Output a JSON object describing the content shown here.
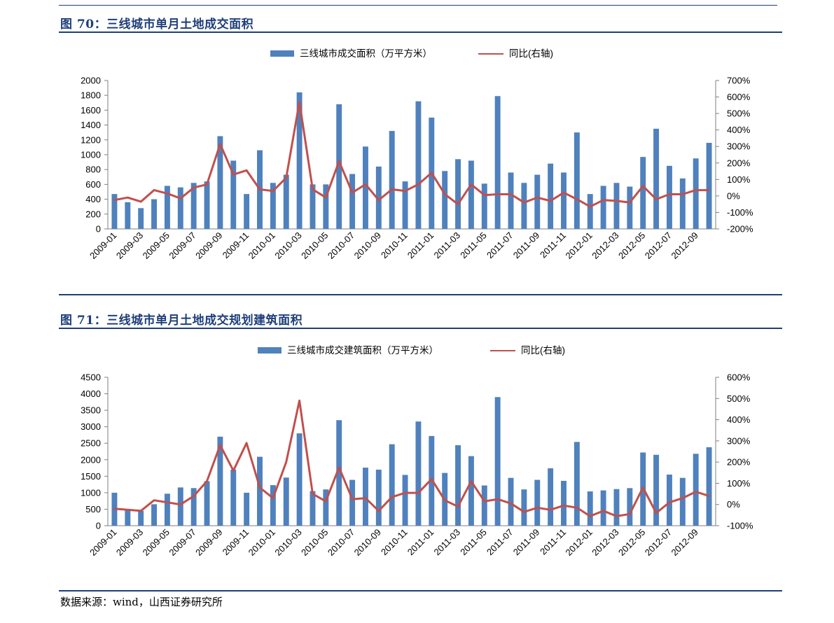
{
  "figures": [
    {
      "title": "图 70：三线城市单月土地成交面积"
    },
    {
      "title": "图 71：三线城市单月土地成交规划建筑面积"
    }
  ],
  "source": "数据来源：wind，山西证券研究所",
  "colors": {
    "bar": "#4f81bd",
    "line": "#c0504d",
    "title": "#1f3f7a"
  },
  "chart_data": [
    {
      "type": "bar",
      "title": "",
      "categories": [
        "2009-01",
        "2009-02",
        "2009-03",
        "2009-04",
        "2009-05",
        "2009-06",
        "2009-07",
        "2009-08",
        "2009-09",
        "2009-10",
        "2009-11",
        "2009-12",
        "2010-01",
        "2010-02",
        "2010-03",
        "2010-04",
        "2010-05",
        "2010-06",
        "2010-07",
        "2010-08",
        "2010-09",
        "2010-10",
        "2010-11",
        "2010-12",
        "2011-01",
        "2011-02",
        "2011-03",
        "2011-04",
        "2011-05",
        "2011-06",
        "2011-07",
        "2011-08",
        "2011-09",
        "2011-10",
        "2011-11",
        "2011-12",
        "2012-01",
        "2012-02",
        "2012-03",
        "2012-04",
        "2012-05",
        "2012-06",
        "2012-07",
        "2012-08",
        "2012-09",
        "2012-10"
      ],
      "tick_labels": [
        "2009-01",
        "2009-03",
        "2009-05",
        "2009-07",
        "2009-09",
        "2009-11",
        "2010-01",
        "2010-03",
        "2010-05",
        "2010-07",
        "2010-09",
        "2010-11",
        "2011-01",
        "2011-03",
        "2011-05",
        "2011-07",
        "2011-09",
        "2011-11",
        "2012-01",
        "2012-03",
        "2012-05",
        "2012-07",
        "2012-09"
      ],
      "series": [
        {
          "name": "三线城市成交面积（万平方米）",
          "axis": "left",
          "kind": "bar",
          "values": [
            470,
            360,
            280,
            400,
            580,
            560,
            620,
            640,
            1250,
            920,
            470,
            1060,
            620,
            730,
            1840,
            600,
            600,
            1680,
            740,
            1110,
            840,
            1320,
            640,
            1720,
            1500,
            780,
            940,
            920,
            610,
            1790,
            760,
            620,
            730,
            880,
            760,
            1300,
            470,
            580,
            620,
            570,
            970,
            1350,
            850,
            680,
            950,
            1160
          ]
        },
        {
          "name": "同比(右轴)",
          "axis": "right",
          "kind": "line",
          "values": [
            -25,
            -10,
            -35,
            35,
            15,
            -15,
            50,
            70,
            315,
            130,
            155,
            40,
            30,
            110,
            570,
            40,
            -10,
            210,
            20,
            70,
            -25,
            40,
            30,
            70,
            140,
            10,
            -50,
            70,
            5,
            10,
            10,
            -40,
            -10,
            -30,
            20,
            -20,
            -65,
            -25,
            -30,
            -40,
            60,
            -20,
            10,
            10,
            35,
            35
          ]
        }
      ],
      "ylim": [
        0,
        2000
      ],
      "y_ticks": [
        "0",
        "200",
        "400",
        "600",
        "800",
        "1000",
        "1200",
        "1400",
        "1600",
        "1800",
        "2000"
      ],
      "y2lim": [
        -200,
        700
      ],
      "y2_ticks": [
        "-200%",
        "-100%",
        "0%",
        "100%",
        "200%",
        "300%",
        "400%",
        "500%",
        "600%",
        "700%"
      ],
      "legend": "top-center"
    },
    {
      "type": "bar",
      "title": "",
      "categories": [
        "2009-01",
        "2009-02",
        "2009-03",
        "2009-04",
        "2009-05",
        "2009-06",
        "2009-07",
        "2009-08",
        "2009-09",
        "2009-10",
        "2009-11",
        "2009-12",
        "2010-01",
        "2010-02",
        "2010-03",
        "2010-04",
        "2010-05",
        "2010-06",
        "2010-07",
        "2010-08",
        "2010-09",
        "2010-10",
        "2010-11",
        "2010-12",
        "2011-01",
        "2011-02",
        "2011-03",
        "2011-04",
        "2011-05",
        "2011-06",
        "2011-07",
        "2011-08",
        "2011-09",
        "2011-10",
        "2011-11",
        "2011-12",
        "2012-01",
        "2012-02",
        "2012-03",
        "2012-04",
        "2012-05",
        "2012-06",
        "2012-07",
        "2012-08",
        "2012-09",
        "2012-10"
      ],
      "tick_labels": [
        "2009-01",
        "2009-03",
        "2009-05",
        "2009-07",
        "2009-09",
        "2009-11",
        "2010-01",
        "2010-03",
        "2010-05",
        "2010-07",
        "2010-09",
        "2010-11",
        "2011-01",
        "2011-03",
        "2011-05",
        "2011-07",
        "2011-09",
        "2011-11",
        "2012-01",
        "2012-03",
        "2012-05",
        "2012-07",
        "2012-09"
      ],
      "series": [
        {
          "name": "三线城市成交建筑面积（万平方米）",
          "axis": "left",
          "kind": "bar",
          "values": [
            1000,
            480,
            450,
            650,
            970,
            1160,
            1140,
            1350,
            2700,
            1700,
            1000,
            2090,
            1230,
            1460,
            2800,
            1050,
            1100,
            3200,
            1390,
            1760,
            1700,
            2470,
            1540,
            3160,
            2720,
            1600,
            2440,
            2110,
            1220,
            3900,
            1450,
            1100,
            1390,
            1740,
            1360,
            2540,
            1040,
            1070,
            1110,
            1140,
            2220,
            2150,
            1550,
            1450,
            2180,
            2380
          ]
        },
        {
          "name": "同比(右轴)",
          "axis": "right",
          "kind": "line",
          "values": [
            -20,
            -25,
            -30,
            20,
            10,
            0,
            40,
            110,
            280,
            160,
            290,
            80,
            30,
            200,
            490,
            50,
            15,
            175,
            25,
            30,
            -30,
            35,
            55,
            55,
            120,
            20,
            -10,
            110,
            15,
            25,
            5,
            -35,
            -15,
            -25,
            -5,
            -15,
            -55,
            -30,
            -55,
            -45,
            80,
            -40,
            10,
            30,
            60,
            40
          ]
        }
      ],
      "ylim": [
        0,
        4500
      ],
      "y_ticks": [
        "0",
        "500",
        "1000",
        "1500",
        "2000",
        "2500",
        "3000",
        "3500",
        "4000",
        "4500"
      ],
      "y2lim": [
        -100,
        600
      ],
      "y2_ticks": [
        "-100%",
        "0%",
        "100%",
        "200%",
        "300%",
        "400%",
        "500%",
        "600%"
      ],
      "legend": "top-center"
    }
  ]
}
